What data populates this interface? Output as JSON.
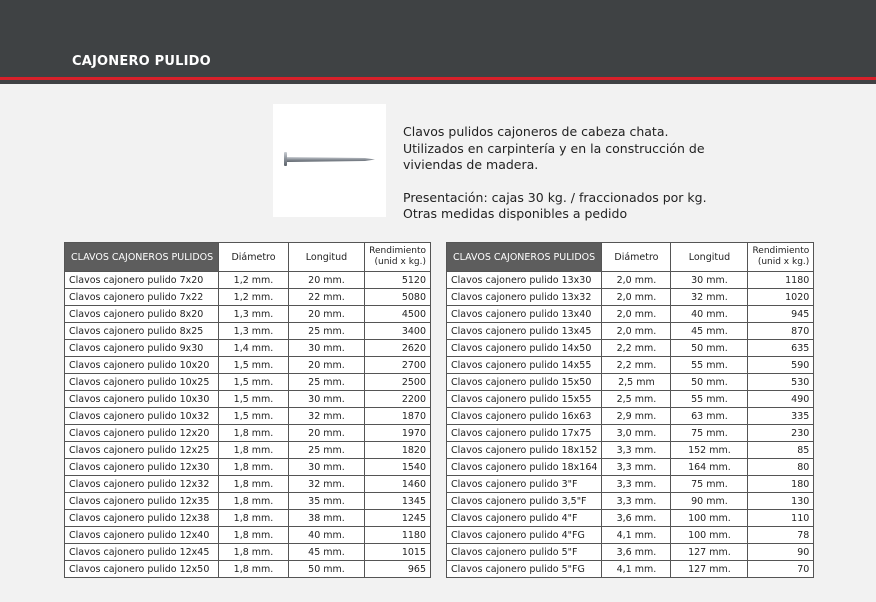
{
  "header": {
    "title": "CAJONERO PULIDO"
  },
  "product": {
    "image": "nail-image",
    "description": [
      "Clavos pulidos cajoneros de cabeza chata.",
      "Utilizados en carpintería y en la construcción de",
      "viviendas de madera."
    ],
    "presentation": [
      "Presentación: cajas 30 kg. / fraccionados por kg.",
      "Otras medidas disponibles a pedido"
    ]
  },
  "columns": [
    "CLAVOS CAJONEROS PULIDOS",
    "Diámetro",
    "Longitud",
    "Rendimiento",
    "(unid x kg.)"
  ],
  "tables": [
    [
      [
        "Clavos cajonero pulido  7x20",
        "1,2 mm.",
        "20 mm.",
        "5120"
      ],
      [
        "Clavos cajonero pulido  7x22",
        "1,2 mm.",
        "22 mm.",
        "5080"
      ],
      [
        "Clavos cajonero pulido  8x20",
        "1,3 mm.",
        "20 mm.",
        "4500"
      ],
      [
        "Clavos cajonero pulido  8x25",
        "1,3 mm.",
        "25 mm.",
        "3400"
      ],
      [
        "Clavos cajonero pulido  9x30",
        "1,4 mm.",
        "30 mm.",
        "2620"
      ],
      [
        "Clavos cajonero pulido  10x20",
        "1,5 mm.",
        "20 mm.",
        "2700"
      ],
      [
        "Clavos cajonero pulido  10x25",
        "1,5 mm.",
        "25 mm.",
        "2500"
      ],
      [
        "Clavos cajonero pulido  10x30",
        "1,5 mm.",
        "30 mm.",
        "2200"
      ],
      [
        "Clavos cajonero pulido  10x32",
        "1,5 mm.",
        "32 mm.",
        "1870"
      ],
      [
        "Clavos cajonero pulido  12x20",
        "1,8 mm.",
        "20 mm.",
        "1970"
      ],
      [
        "Clavos cajonero pulido  12x25",
        "1,8 mm.",
        "25 mm.",
        "1820"
      ],
      [
        "Clavos cajonero pulido  12x30",
        "1,8 mm.",
        "30 mm.",
        "1540"
      ],
      [
        "Clavos cajonero pulido  12x32",
        "1,8 mm.",
        "32 mm.",
        "1460"
      ],
      [
        "Clavos cajonero pulido  12x35",
        "1,8 mm.",
        "35 mm.",
        "1345"
      ],
      [
        "Clavos cajonero pulido  12x38",
        "1,8 mm.",
        "38 mm.",
        "1245"
      ],
      [
        "Clavos cajonero pulido  12x40",
        "1,8 mm.",
        "40 mm.",
        "1180"
      ],
      [
        "Clavos cajonero pulido  12x45",
        "1,8 mm.",
        "45 mm.",
        "1015"
      ],
      [
        "Clavos cajonero pulido  12x50",
        "1,8 mm.",
        "50 mm.",
        "965"
      ]
    ],
    [
      [
        "Clavos cajonero pulido  13x30",
        "2,0 mm.",
        "30 mm.",
        "1180"
      ],
      [
        "Clavos cajonero pulido  13x32",
        "2,0 mm.",
        "32 mm.",
        "1020"
      ],
      [
        "Clavos cajonero pulido  13x40",
        "2,0 mm.",
        "40 mm.",
        "945"
      ],
      [
        "Clavos cajonero pulido  13x45",
        "2,0 mm.",
        "45 mm.",
        "870"
      ],
      [
        "Clavos cajonero pulido  14x50",
        "2,2 mm.",
        "50 mm.",
        "635"
      ],
      [
        "Clavos cajonero pulido  14x55",
        "2,2 mm.",
        "55 mm.",
        "590"
      ],
      [
        "Clavos cajonero pulido  15x50",
        "2,5 mm",
        "50 mm.",
        "530"
      ],
      [
        "Clavos cajonero pulido  15x55",
        "2,5 mm.",
        "55 mm.",
        "490"
      ],
      [
        "Clavos cajonero pulido  16x63",
        "2,9 mm.",
        "63 mm.",
        "335"
      ],
      [
        "Clavos cajonero pulido  17x75",
        "3,0 mm.",
        "75 mm.",
        "230"
      ],
      [
        "Clavos cajonero pulido  18x152",
        "3,3 mm.",
        "152 mm.",
        "85"
      ],
      [
        "Clavos cajonero pulido  18x164",
        "3,3 mm.",
        "164 mm.",
        "80"
      ],
      [
        "Clavos cajonero pulido  3\"F",
        "3,3 mm.",
        "75 mm.",
        "180"
      ],
      [
        "Clavos cajonero pulido  3,5\"F",
        "3,3 mm.",
        "90 mm.",
        "130"
      ],
      [
        "Clavos cajonero pulido  4\"F",
        "3,6 mm.",
        "100 mm.",
        "110"
      ],
      [
        "Clavos cajonero pulido  4\"FG",
        "4,1 mm.",
        "100 mm.",
        "78"
      ],
      [
        "Clavos cajonero pulido  5\"F",
        "3,6 mm.",
        "127 mm.",
        "90"
      ],
      [
        "Clavos cajonero pulido  5\"FG",
        "4,1 mm.",
        "127 mm.",
        "70"
      ]
    ]
  ],
  "colors": {
    "header_bg": "#3f4244",
    "accent": "#d8202a",
    "table_header_bg": "#5d5d5d"
  }
}
